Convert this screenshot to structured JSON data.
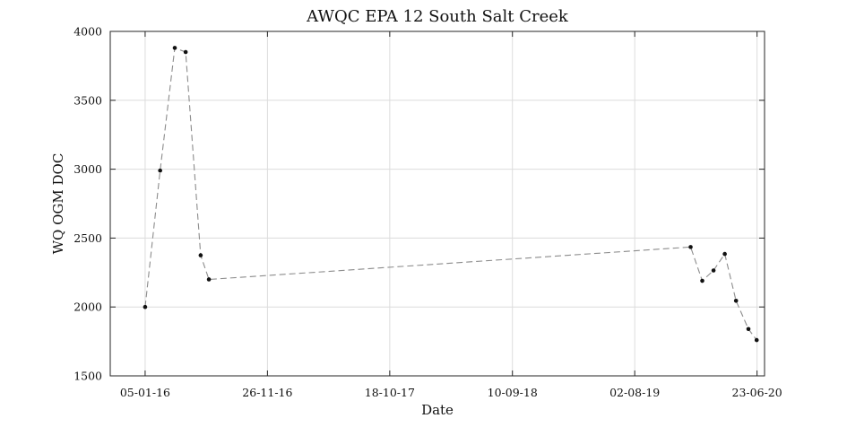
{
  "chart_data": {
    "type": "line",
    "title": "AWQC EPA 12 South Salt Creek",
    "xlabel": "Date",
    "ylabel": "WQ OGM DOC",
    "x_type": "date",
    "xlim": [
      "2015-10-04",
      "2020-07-13"
    ],
    "ylim": [
      1500,
      4000
    ],
    "x_ticks": [
      {
        "date": "2016-01-05",
        "label": "05-01-16"
      },
      {
        "date": "2016-11-26",
        "label": "26-11-16"
      },
      {
        "date": "2017-10-18",
        "label": "18-10-17"
      },
      {
        "date": "2018-09-10",
        "label": "10-09-18"
      },
      {
        "date": "2019-08-02",
        "label": "02-08-19"
      },
      {
        "date": "2020-06-23",
        "label": "23-06-20"
      }
    ],
    "y_ticks": [
      {
        "value": 1500,
        "label": "1500"
      },
      {
        "value": 2000,
        "label": "2000"
      },
      {
        "value": 2500,
        "label": "2500"
      },
      {
        "value": 3000,
        "label": "3000"
      },
      {
        "value": 3500,
        "label": "3500"
      },
      {
        "value": 4000,
        "label": "4000"
      }
    ],
    "grid": true,
    "series": [
      {
        "line_style": "dashed",
        "line_color": "#8c8c8c",
        "marker": "dot",
        "marker_color": "#111111",
        "points": [
          {
            "x": "2016-01-05",
            "y": 2000
          },
          {
            "x": "2016-02-14",
            "y": 2990
          },
          {
            "x": "2016-03-24",
            "y": 3880
          },
          {
            "x": "2016-04-22",
            "y": 3850
          },
          {
            "x": "2016-06-01",
            "y": 2375
          },
          {
            "x": "2016-06-23",
            "y": 2200
          },
          {
            "x": "2019-12-29",
            "y": 2435
          },
          {
            "x": "2020-01-29",
            "y": 2190
          },
          {
            "x": "2020-02-28",
            "y": 2265
          },
          {
            "x": "2020-03-29",
            "y": 2385
          },
          {
            "x": "2020-04-28",
            "y": 2045
          },
          {
            "x": "2020-05-31",
            "y": 1840
          },
          {
            "x": "2020-06-22",
            "y": 1760
          }
        ]
      }
    ]
  }
}
